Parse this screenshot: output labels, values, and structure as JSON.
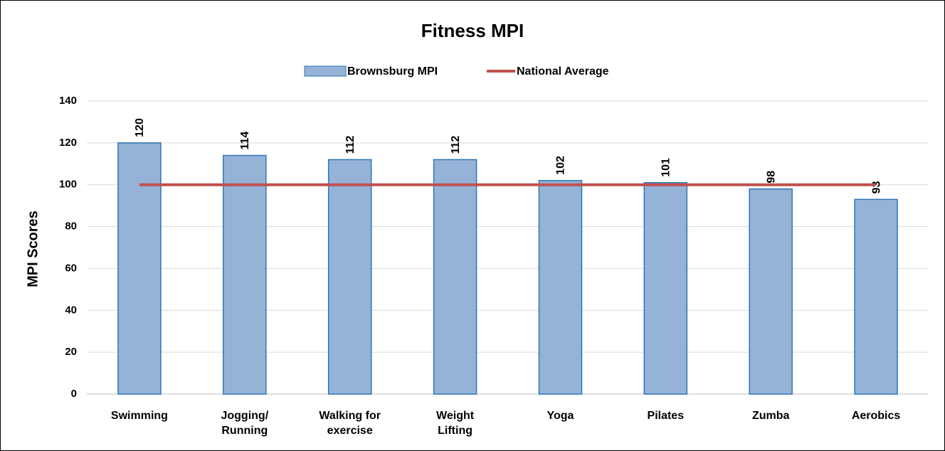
{
  "chart_data": {
    "type": "bar",
    "title": "Fitness MPI",
    "y_label": "MPI Scores",
    "categories": [
      "Swimming",
      "Jogging/ Running",
      "Walking for exercise",
      "Weight Lifting",
      "Yoga",
      "Pilates",
      "Zumba",
      "Aerobics"
    ],
    "series": [
      {
        "name": "Brownsburg MPI",
        "type": "bar",
        "color": "#95b3d7",
        "values": [
          120,
          114,
          112,
          112,
          102,
          101,
          98,
          93
        ]
      },
      {
        "name": "National Average",
        "type": "line",
        "color": "#c0504d",
        "values": [
          100,
          100,
          100,
          100,
          100,
          100,
          100,
          100
        ]
      }
    ],
    "ylim": [
      0,
      140
    ],
    "yticks": [
      0,
      20,
      40,
      60,
      80,
      100,
      120,
      140
    ],
    "grid": true,
    "legend": "top"
  }
}
